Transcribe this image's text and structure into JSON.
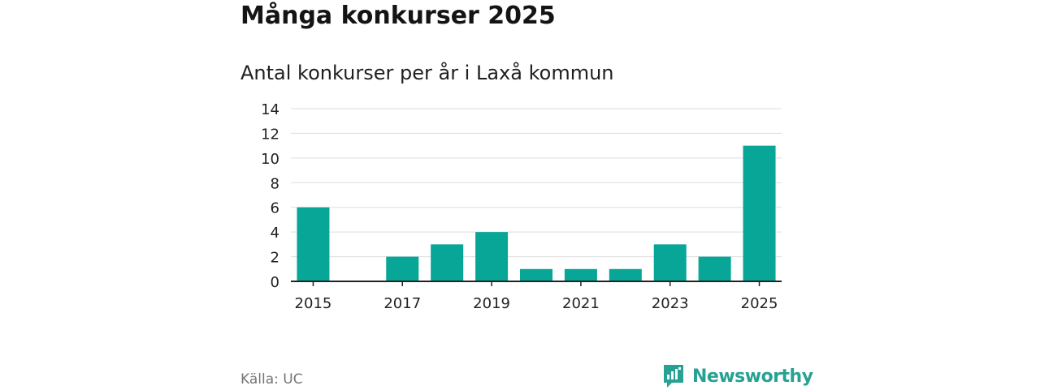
{
  "header": {
    "title": "Många konkurser 2025",
    "subtitle": "Antal konkurser per år i Laxå kommun"
  },
  "footer": {
    "source": "Källa: UC",
    "brand": "Newsworthy"
  },
  "colors": {
    "bar": "#07a697",
    "grid": "#dddddd",
    "axis": "#222222",
    "brand": "#27a193"
  },
  "chart_data": {
    "type": "bar",
    "title": "Antal konkurser per år i Laxå kommun",
    "xlabel": "",
    "ylabel": "",
    "categories": [
      "2015",
      "2016",
      "2017",
      "2018",
      "2019",
      "2020",
      "2021",
      "2022",
      "2023",
      "2024",
      "2025"
    ],
    "values": [
      6,
      0,
      2,
      3,
      4,
      1,
      1,
      1,
      3,
      2,
      11
    ],
    "x_tick_labels": [
      "2015",
      "2017",
      "2019",
      "2021",
      "2023",
      "2025"
    ],
    "y_ticks": [
      0,
      2,
      4,
      6,
      8,
      10,
      12,
      14
    ],
    "ylim": [
      0,
      14
    ],
    "grid": true
  }
}
